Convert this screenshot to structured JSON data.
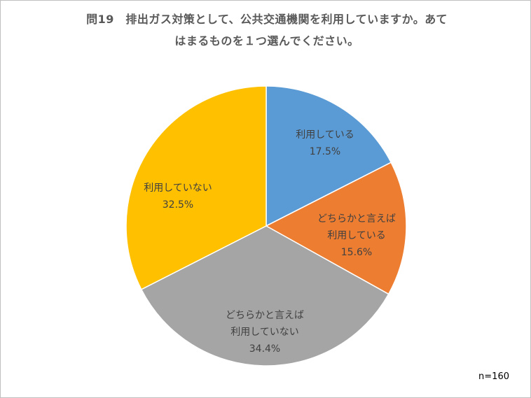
{
  "title_lines": [
    "問19　排出ガス対策として、公共交通機関を利用していますか。あて",
    "はまるものを１つ選んでください。"
  ],
  "n_label": "n=160",
  "chart_data": {
    "type": "pie",
    "title": "問19　排出ガス対策として、公共交通機関を利用していますか。あてはまるものを１つ選んでください。",
    "slices": [
      {
        "label": [
          "利用している"
        ],
        "value": 17.5,
        "value_label": "17.5%",
        "color": "#5B9BD5"
      },
      {
        "label": [
          "どちらかと言えば",
          "利用している"
        ],
        "value": 15.6,
        "value_label": "15.6%",
        "color": "#ED7D31"
      },
      {
        "label": [
          "どちらかと言えば",
          "利用していない"
        ],
        "value": 34.4,
        "value_label": "34.4%",
        "color": "#A5A5A5"
      },
      {
        "label": [
          "利用していない"
        ],
        "value": 32.5,
        "value_label": "32.5%",
        "color": "#FFC000"
      }
    ],
    "start_angle": "12 o'clock",
    "direction": "clockwise",
    "legend": "none",
    "note": "n=160"
  }
}
